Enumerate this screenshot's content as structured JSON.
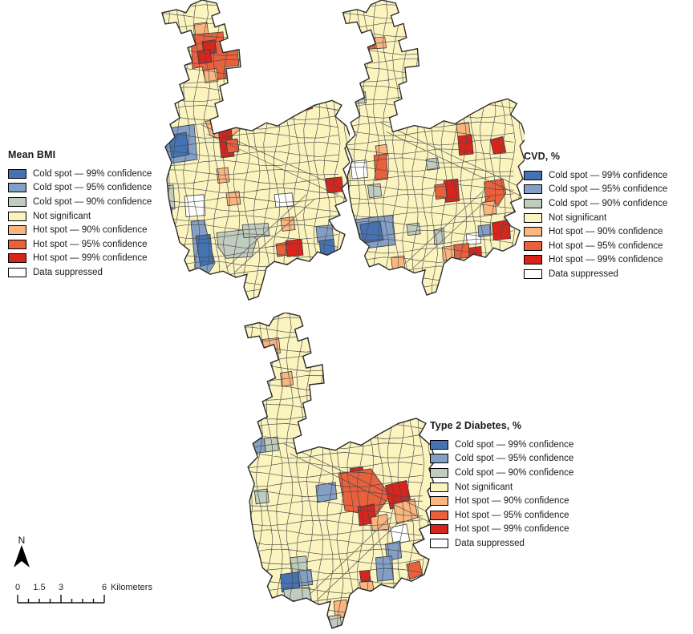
{
  "colors": {
    "cold99": "#4472B2",
    "cold95": "#849FC6",
    "cold90": "#C0CCBE",
    "notsig": "#FBF4BF",
    "hot90": "#FAB67E",
    "hot95": "#E9603D",
    "hot99": "#D7251E",
    "supp": "#FFFFFF",
    "tract": "#4A4A4A",
    "outline": "#2B2B2B"
  },
  "legend_items": [
    {
      "key": "cold99",
      "label": "Cold spot — 99% confidence"
    },
    {
      "key": "cold95",
      "label": "Cold spot — 95% confidence"
    },
    {
      "key": "cold90",
      "label": "Cold spot — 90% confidence"
    },
    {
      "key": "notsig",
      "label": "Not significant"
    },
    {
      "key": "hot90",
      "label": "Hot spot — 90% confidence"
    },
    {
      "key": "hot95",
      "label": "Hot spot — 95% confidence"
    },
    {
      "key": "hot99",
      "label": "Hot spot — 99% confidence"
    },
    {
      "key": "supp",
      "label": "Data suppressed"
    }
  ],
  "maps": [
    {
      "title": "Mean BMI",
      "patches": [
        {
          "c": "hot90",
          "p": "56,30 72,28 74,44 58,46"
        },
        {
          "c": "hot95",
          "p": "52,44 92,40 94,64 110,62 112,82 94,84 96,98 70,102 66,84 54,86"
        },
        {
          "c": "hot99",
          "p": "66,52 82,50 84,66 68,68"
        },
        {
          "c": "hot99",
          "p": "60,64 76,62 78,78 62,80"
        },
        {
          "c": "hot90",
          "p": "68,88 84,86 86,102 70,104"
        },
        {
          "c": "hot99",
          "p": "142,124 196,118 204,136 182,142 150,146 140,134"
        },
        {
          "c": "hot90",
          "p": "70,152 108,148 114,162 96,176 76,170"
        },
        {
          "c": "hot99",
          "p": "86,162 102,160 106,196 90,198"
        },
        {
          "c": "hot90",
          "p": "104,138 122,134 124,152 108,154"
        },
        {
          "c": "hot95",
          "p": "96,176 110,174 112,190 98,192"
        },
        {
          "c": "hot90",
          "p": "84,212 98,210 100,228 86,230"
        },
        {
          "c": "hot90",
          "p": "96,242 112,240 114,256 98,258"
        },
        {
          "c": "hot99",
          "p": "220,224 240,222 242,240 222,242"
        },
        {
          "c": "hot90",
          "p": "164,274 180,272 182,288 166,290"
        },
        {
          "c": "hot99",
          "p": "170,302 190,300 192,320 172,322"
        },
        {
          "c": "hot95",
          "p": "158,306 170,304 172,320 160,322"
        },
        {
          "c": "cold95",
          "p": "16,162 56,156 60,200 20,206"
        },
        {
          "c": "cold99",
          "p": "24,170 46,166 50,194 28,198"
        },
        {
          "c": "cold90",
          "p": "14,234 30,232 32,262 16,264"
        },
        {
          "c": "cold95",
          "p": "12,262 28,260 30,288 14,290"
        },
        {
          "c": "cold99",
          "p": "14,288 28,286 30,300 16,302"
        },
        {
          "c": "cold95",
          "p": "52,278 68,276 82,330 72,346 58,340"
        },
        {
          "c": "cold99",
          "p": "58,296 76,294 80,330 64,334"
        },
        {
          "c": "cold90",
          "p": "84,292 120,288 134,300 128,322 96,324 86,310"
        },
        {
          "c": "cold90",
          "p": "116,282 148,280 150,296 118,298"
        },
        {
          "c": "cold95",
          "p": "208,284 228,282 230,302 210,304"
        },
        {
          "c": "cold99",
          "p": "212,302 230,300 232,318 214,320"
        },
        {
          "c": "supp",
          "p": "156,244 178,242 180,258 158,260"
        },
        {
          "c": "supp",
          "p": "44,246 68,244 70,270 46,272"
        }
      ]
    },
    {
      "title": "CVD, %",
      "patches": [
        {
          "c": "hot95",
          "p": "28,50 56,48 58,62 30,64"
        },
        {
          "c": "hot90",
          "p": "56,48 70,47 72,61 58,62"
        },
        {
          "c": "cold90",
          "p": "30,118 45,117 46,131 31,132"
        },
        {
          "c": "hot90",
          "p": "162,158 178,156 180,172 164,174"
        },
        {
          "c": "hot99",
          "p": "164,174 182,172 184,196 166,198"
        },
        {
          "c": "hot90",
          "p": "58,186 72,184 74,198 60,200"
        },
        {
          "c": "hot95",
          "p": "56,198 72,196 74,228 58,230"
        },
        {
          "c": "cold90",
          "p": "48,236 64,234 66,250 50,252"
        },
        {
          "c": "cold90",
          "p": "123,203 138,201 140,215 125,217"
        },
        {
          "c": "hot99",
          "p": "146,230 164,228 166,256 148,258"
        },
        {
          "c": "hot95",
          "p": "134,236 148,234 150,252 136,254"
        },
        {
          "c": "hot95",
          "p": "198,232 222,228 226,246 216,262 200,258"
        },
        {
          "c": "hot99",
          "p": "206,178 222,174 226,194 210,196"
        },
        {
          "c": "hot90",
          "p": "196,258 212,256 214,272 198,274"
        },
        {
          "c": "supp",
          "p": "175,298 193,296 194,310 176,312"
        },
        {
          "c": "hot99",
          "p": "208,284 230,280 232,304 210,306"
        },
        {
          "c": "cold95",
          "p": "190,288 206,286 207,300 191,302"
        },
        {
          "c": "hot90",
          "p": "144,315 159,313 160,330 145,332"
        },
        {
          "c": "hot95",
          "p": "159,312 178,310 179,328 160,330"
        },
        {
          "c": "hot99",
          "p": "178,316 194,314 195,332 179,334"
        },
        {
          "c": "cold90",
          "p": "133,293 146,291 147,310 134,312"
        },
        {
          "c": "cold95",
          "p": "30,280 80,274 84,312 34,318"
        },
        {
          "c": "cold99",
          "p": "38,286 64,282 68,306 42,310"
        },
        {
          "c": "cold90",
          "p": "26,300 38,298 40,318 28,320"
        },
        {
          "c": "cold90",
          "p": "98,286 114,284 116,298 100,300"
        },
        {
          "c": "hot90",
          "p": "78,328 94,326 96,342 80,344"
        },
        {
          "c": "supp",
          "p": "26,206 46,204 48,226 28,228"
        }
      ]
    },
    {
      "title": "Type 2 Diabetes, %",
      "patches": [
        {
          "c": "hot90",
          "p": "38,32 58,30 60,48 40,50"
        },
        {
          "c": "hot90",
          "p": "60,72 74,70 76,86 62,88"
        },
        {
          "c": "cold95",
          "p": "22,152 40,150 42,166 24,168"
        },
        {
          "c": "cold90",
          "p": "40,150 56,148 58,164 42,166"
        },
        {
          "c": "cold90",
          "p": "28,212 44,210 46,226 30,228"
        },
        {
          "c": "cold95",
          "p": "104,206 128,202 130,222 106,226"
        },
        {
          "c": "hot99",
          "p": "146,186 162,184 164,202 148,204"
        },
        {
          "c": "hot95",
          "p": "132,192 172,186 196,218 178,242 140,236"
        },
        {
          "c": "hot99",
          "p": "190,206 216,200 222,228 196,234"
        },
        {
          "c": "hot99",
          "p": "156,232 176,228 178,250 158,254"
        },
        {
          "c": "hot90",
          "p": "200,228 226,222 230,244 204,252"
        },
        {
          "c": "hot90",
          "p": "172,244 192,240 194,258 174,260"
        },
        {
          "c": "supp",
          "p": "196,256 216,252 220,272 200,276"
        },
        {
          "c": "cold95",
          "p": "190,276 208,272 210,292 192,296"
        },
        {
          "c": "cold95",
          "p": "178,292 198,290 200,318 180,320"
        },
        {
          "c": "cold90",
          "p": "72,292 92,290 94,310 74,312"
        },
        {
          "c": "cold99",
          "p": "60,312 82,309 84,330 62,333"
        },
        {
          "c": "cold95",
          "p": "82,308 98,306 100,324 84,326"
        },
        {
          "c": "cold90",
          "p": "64,330 96,327 98,342 66,344"
        },
        {
          "c": "hot99",
          "p": "158,308 170,307 172,320 160,321"
        },
        {
          "c": "hot90",
          "p": "158,321 174,320 176,334 160,335"
        },
        {
          "c": "hot95",
          "p": "216,300 232,296 236,312 220,318"
        },
        {
          "c": "hot90",
          "p": "126,344 142,342 144,362 128,364"
        },
        {
          "c": "cold90",
          "p": "120,362 134,360 136,376 122,378"
        }
      ]
    }
  ],
  "north": {
    "label": "N"
  },
  "scalebar": {
    "tick_labels": [
      "0",
      "1.5",
      "3",
      "6"
    ],
    "unit_label": "Kilometers"
  }
}
